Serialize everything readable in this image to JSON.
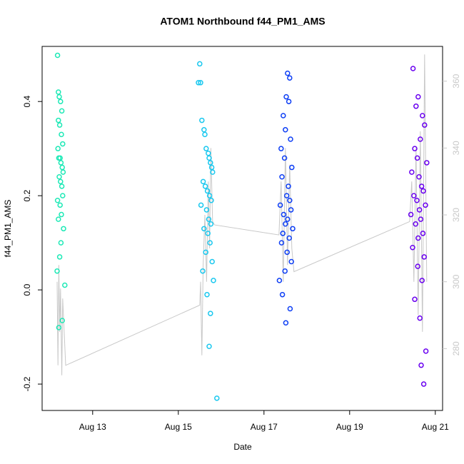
{
  "chart_data": {
    "type": "scatter",
    "title": "ATOM1 Northbound f44_PM1_AMS",
    "x_label": "Date",
    "y_label": "f44_PM1_AMS",
    "xlim": [
      11.82,
      21.17
    ],
    "ylim": [
      -0.256,
      0.517
    ],
    "y2lim": [
      261.5,
      370.4
    ],
    "xticks": [
      {
        "value": 13,
        "label": "Aug 13"
      },
      {
        "value": 15,
        "label": "Aug 15"
      },
      {
        "value": 17,
        "label": "Aug 17"
      },
      {
        "value": 19,
        "label": "Aug 19"
      },
      {
        "value": 21,
        "label": "Aug 21"
      }
    ],
    "yticks": [
      -0.2,
      {
        "value": 0,
        "label": "0.0"
      },
      0.2,
      0.4
    ],
    "y2ticks": [
      280,
      300,
      320,
      340,
      360
    ],
    "series": [
      {
        "type": "line",
        "axis": "y2",
        "color": "#c8c8c8",
        "x": [
          12.17,
          12.19,
          12.21,
          12.23,
          12.25,
          12.28,
          12.3,
          12.37,
          15.5,
          15.52,
          15.55,
          15.58,
          15.62,
          15.66,
          15.7,
          15.73,
          15.76,
          15.8,
          15.85,
          17.35,
          17.4,
          17.45,
          17.5,
          17.55,
          17.6,
          17.65,
          17.7,
          20.4,
          20.45,
          20.5,
          20.55,
          20.6,
          20.65,
          20.7,
          20.75,
          20.8
        ],
        "values": [
          300,
          275,
          305,
          285,
          298,
          272,
          295,
          275,
          293,
          300,
          278,
          305,
          320,
          300,
          330,
          310,
          340,
          318,
          317,
          314,
          330,
          300,
          340,
          305,
          335,
          310,
          303,
          318,
          330,
          300,
          340,
          290,
          345,
          285,
          368,
          300
        ]
      },
      {
        "color": "#1de9b6",
        "x": [
          12.18,
          12.2,
          12.22,
          12.25,
          12.28,
          12.2,
          12.23,
          12.27,
          12.3,
          12.19,
          12.21,
          12.24,
          12.26,
          12.29,
          12.31,
          12.22,
          12.25,
          12.28,
          12.18,
          12.3,
          12.24,
          12.27,
          12.2,
          12.32,
          12.26,
          12.23,
          12.29,
          12.21,
          12.35,
          12.17
        ],
        "values": [
          0.498,
          0.42,
          0.41,
          0.4,
          0.38,
          0.36,
          0.35,
          0.33,
          0.31,
          0.3,
          0.28,
          0.28,
          0.27,
          0.26,
          0.25,
          0.24,
          0.23,
          0.22,
          0.19,
          0.2,
          0.18,
          0.16,
          0.15,
          0.13,
          0.1,
          0.07,
          -0.065,
          -0.08,
          0.01,
          0.04
        ]
      },
      {
        "color": "#1ac8ef",
        "x": [
          15.5,
          15.47,
          15.52,
          15.55,
          15.6,
          15.62,
          15.65,
          15.7,
          15.72,
          15.75,
          15.78,
          15.8,
          15.58,
          15.63,
          15.68,
          15.73,
          15.77,
          15.53,
          15.66,
          15.71,
          15.76,
          15.6,
          15.69,
          15.74,
          15.64,
          15.79,
          15.57,
          15.82,
          15.67,
          15.75,
          15.72,
          15.9
        ],
        "values": [
          0.48,
          0.44,
          0.44,
          0.36,
          0.34,
          0.33,
          0.3,
          0.29,
          0.28,
          0.27,
          0.26,
          0.25,
          0.23,
          0.22,
          0.21,
          0.2,
          0.19,
          0.18,
          0.17,
          0.15,
          0.14,
          0.13,
          0.12,
          0.1,
          0.08,
          0.06,
          0.04,
          0.02,
          -0.01,
          -0.05,
          -0.12,
          -0.23
        ]
      },
      {
        "color": "#0d3ef5",
        "x": [
          17.55,
          17.6,
          17.52,
          17.58,
          17.45,
          17.5,
          17.62,
          17.4,
          17.48,
          17.65,
          17.42,
          17.57,
          17.53,
          17.6,
          17.38,
          17.63,
          17.46,
          17.55,
          17.5,
          17.67,
          17.44,
          17.59,
          17.41,
          17.54,
          17.64,
          17.49,
          17.36,
          17.43,
          17.61,
          17.51
        ],
        "values": [
          0.46,
          0.45,
          0.41,
          0.4,
          0.37,
          0.34,
          0.32,
          0.3,
          0.28,
          0.26,
          0.24,
          0.22,
          0.2,
          0.19,
          0.18,
          0.17,
          0.16,
          0.15,
          0.14,
          0.13,
          0.12,
          0.11,
          0.1,
          0.08,
          0.06,
          0.04,
          0.02,
          -0.01,
          -0.04,
          -0.07
        ]
      },
      {
        "color": "#6a00f0",
        "x": [
          20.48,
          20.6,
          20.55,
          20.7,
          20.75,
          20.65,
          20.52,
          20.58,
          20.8,
          20.45,
          20.62,
          20.68,
          20.72,
          20.5,
          20.57,
          20.77,
          20.63,
          20.43,
          20.66,
          20.54,
          20.71,
          20.6,
          20.47,
          20.74,
          20.59,
          20.69,
          20.52,
          20.64,
          20.78,
          20.67,
          20.73
        ],
        "values": [
          0.47,
          0.41,
          0.39,
          0.37,
          0.35,
          0.32,
          0.3,
          0.28,
          0.27,
          0.25,
          0.24,
          0.22,
          0.21,
          0.2,
          0.19,
          0.18,
          0.17,
          0.16,
          0.15,
          0.14,
          0.12,
          0.11,
          0.09,
          0.07,
          0.05,
          0.02,
          -0.02,
          -0.06,
          -0.13,
          -0.16,
          -0.2
        ]
      }
    ]
  }
}
